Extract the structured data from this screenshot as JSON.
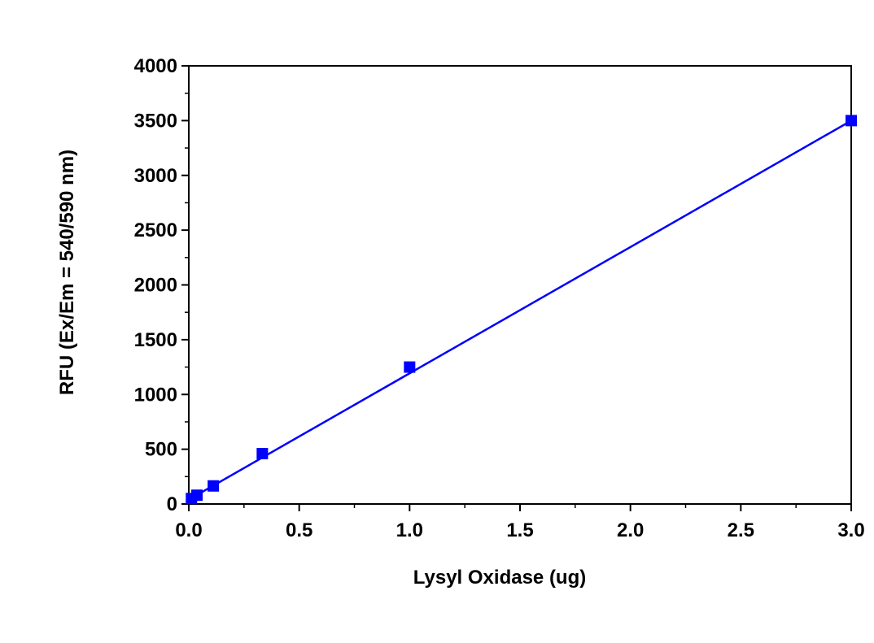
{
  "chart_data": {
    "type": "scatter",
    "title": "",
    "xlabel": "Lysyl Oxidase (ug)",
    "ylabel": "RFU (Ex/Em = 540/590 nm)",
    "xlim": [
      0,
      3.0
    ],
    "ylim": [
      0,
      4000
    ],
    "x_ticks": [
      "0.0",
      "0.5",
      "1.0",
      "1.5",
      "2.0",
      "2.5",
      "3.0"
    ],
    "y_ticks": [
      "0",
      "500",
      "1000",
      "1500",
      "2000",
      "2500",
      "3000",
      "3500",
      "4000"
    ],
    "grid": false,
    "series": [
      {
        "name": "RFU",
        "color": "#0000ff",
        "marker": "square",
        "x": [
          0.012,
          0.037,
          0.111,
          0.333,
          1.0,
          3.0
        ],
        "y": [
          50,
          80,
          165,
          460,
          1250,
          3500
        ],
        "fit": {
          "type": "linear",
          "slope": 1153,
          "intercept": 40
        }
      }
    ]
  }
}
